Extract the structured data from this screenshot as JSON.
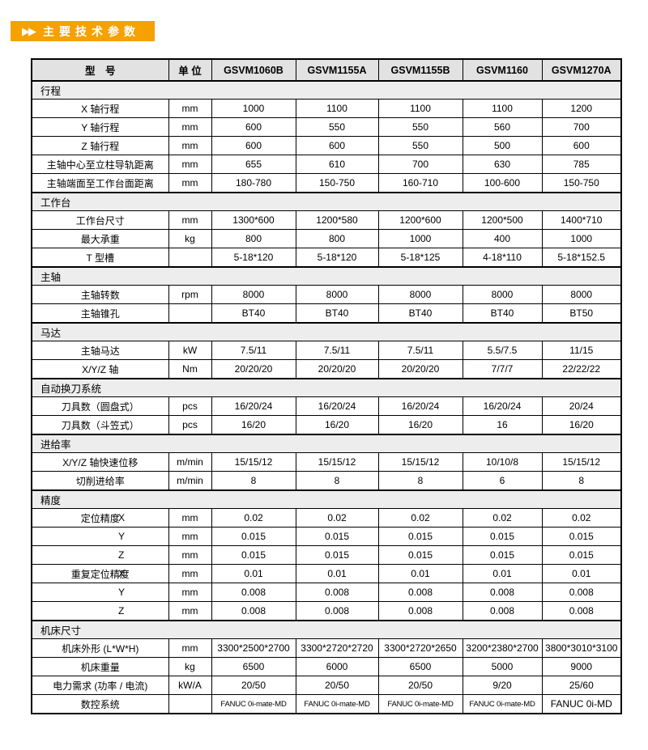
{
  "banner": {
    "arrows": "▶▶",
    "title": "主要技术参数"
  },
  "table": {
    "header": {
      "model_label": "型　号",
      "unit_label": "单 位",
      "models": [
        "GSVM1060B",
        "GSVM1155A",
        "GSVM1155B",
        "GSVM1160",
        "GSVM1270A"
      ]
    },
    "sections": [
      {
        "title": "行程",
        "rows": [
          {
            "label": "X 轴行程",
            "unit": "mm",
            "values": [
              "1000",
              "1100",
              "1100",
              "1100",
              "1200"
            ]
          },
          {
            "label": "Y 轴行程",
            "unit": "mm",
            "values": [
              "600",
              "550",
              "550",
              "560",
              "700"
            ]
          },
          {
            "label": "Z 轴行程",
            "unit": "mm",
            "values": [
              "600",
              "600",
              "550",
              "500",
              "600"
            ]
          },
          {
            "label": "主轴中心至立柱导轨距离",
            "unit": "mm",
            "values": [
              "655",
              "610",
              "700",
              "630",
              "785"
            ]
          },
          {
            "label": "主轴端面至工作台面距离",
            "unit": "mm",
            "values": [
              "180-780",
              "150-750",
              "160-710",
              "100-600",
              "150-750"
            ]
          }
        ]
      },
      {
        "title": "工作台",
        "rows": [
          {
            "label": "工作台尺寸",
            "unit": "mm",
            "values": [
              "1300*600",
              "1200*580",
              "1200*600",
              "1200*500",
              "1400*710"
            ]
          },
          {
            "label": "最大承重",
            "unit": "kg",
            "values": [
              "800",
              "800",
              "1000",
              "400",
              "1000"
            ]
          },
          {
            "label": "T 型槽",
            "unit": "",
            "values": [
              "5-18*120",
              "5-18*120",
              "5-18*125",
              "4-18*110",
              "5-18*152.5"
            ]
          }
        ]
      },
      {
        "title": "主轴",
        "rows": [
          {
            "label": "主轴转数",
            "unit": "rpm",
            "values": [
              "8000",
              "8000",
              "8000",
              "8000",
              "8000"
            ]
          },
          {
            "label": "主轴锥孔",
            "unit": "",
            "values": [
              "BT40",
              "BT40",
              "BT40",
              "BT40",
              "BT50"
            ]
          }
        ]
      },
      {
        "title": "马达",
        "rows": [
          {
            "label": "主轴马达",
            "unit": "kW",
            "values": [
              "7.5/11",
              "7.5/11",
              "7.5/11",
              "5.5/7.5",
              "11/15"
            ]
          },
          {
            "label": "X/Y/Z 轴",
            "unit": "Nm",
            "values": [
              "20/20/20",
              "20/20/20",
              "20/20/20",
              "7/7/7",
              "22/22/22"
            ]
          }
        ]
      },
      {
        "title": "自动换刀系统",
        "rows": [
          {
            "label": "刀具数（圆盘式）",
            "unit": "pcs",
            "values": [
              "16/20/24",
              "16/20/24",
              "16/20/24",
              "16/20/24",
              "20/24"
            ]
          },
          {
            "label": "刀具数（斗笠式）",
            "unit": "pcs",
            "values": [
              "16/20",
              "16/20",
              "16/20",
              "16",
              "16/20"
            ]
          }
        ]
      },
      {
        "title": "进给率",
        "rows": [
          {
            "label": "X/Y/Z 轴快速位移",
            "unit": "m/min",
            "values": [
              "15/15/12",
              "15/15/12",
              "15/15/12",
              "10/10/8",
              "15/15/12"
            ]
          },
          {
            "label": "切削进给率",
            "unit": "m/min",
            "values": [
              "8",
              "8",
              "8",
              "6",
              "8"
            ]
          }
        ]
      },
      {
        "title": "精度",
        "rows": [
          {
            "label": "定位精度",
            "axis": "X",
            "unit": "mm",
            "values": [
              "0.02",
              "0.02",
              "0.02",
              "0.02",
              "0.02"
            ]
          },
          {
            "label": "",
            "axis": "Y",
            "unit": "mm",
            "values": [
              "0.015",
              "0.015",
              "0.015",
              "0.015",
              "0.015"
            ]
          },
          {
            "label": "",
            "axis": "Z",
            "unit": "mm",
            "values": [
              "0.015",
              "0.015",
              "0.015",
              "0.015",
              "0.015"
            ]
          },
          {
            "label": "重复定位精度",
            "axis": "X",
            "unit": "mm",
            "values": [
              "0.01",
              "0.01",
              "0.01",
              "0.01",
              "0.01"
            ]
          },
          {
            "label": "",
            "axis": "Y",
            "unit": "mm",
            "values": [
              "0.008",
              "0.008",
              "0.008",
              "0.008",
              "0.008"
            ]
          },
          {
            "label": "",
            "axis": "Z",
            "unit": "mm",
            "values": [
              "0.008",
              "0.008",
              "0.008",
              "0.008",
              "0.008"
            ]
          }
        ]
      },
      {
        "title": "机床尺寸",
        "rows": [
          {
            "label": "机床外形 (L*W*H)",
            "unit": "mm",
            "values": [
              "3300*2500*2700",
              "3300*2720*2720",
              "3300*2720*2650",
              "3200*2380*2700",
              "3800*3010*3100"
            ]
          },
          {
            "label": "机床重量",
            "unit": "kg",
            "values": [
              "6500",
              "6000",
              "6500",
              "5000",
              "9000"
            ]
          },
          {
            "label": "电力需求 (功率 / 电流)",
            "unit": "kW/A",
            "values": [
              "20/50",
              "20/50",
              "20/50",
              "9/20",
              "25/60"
            ]
          },
          {
            "label": "数控系统",
            "unit": "",
            "values": [
              "FANUC 0i-mate-MD",
              "FANUC 0i-mate-MD",
              "FANUC 0i-mate-MD",
              "FANUC 0i-mate-MD",
              "FANUC 0i-MD"
            ],
            "small_value_indices": [
              0,
              1,
              2,
              3
            ]
          }
        ]
      }
    ]
  }
}
